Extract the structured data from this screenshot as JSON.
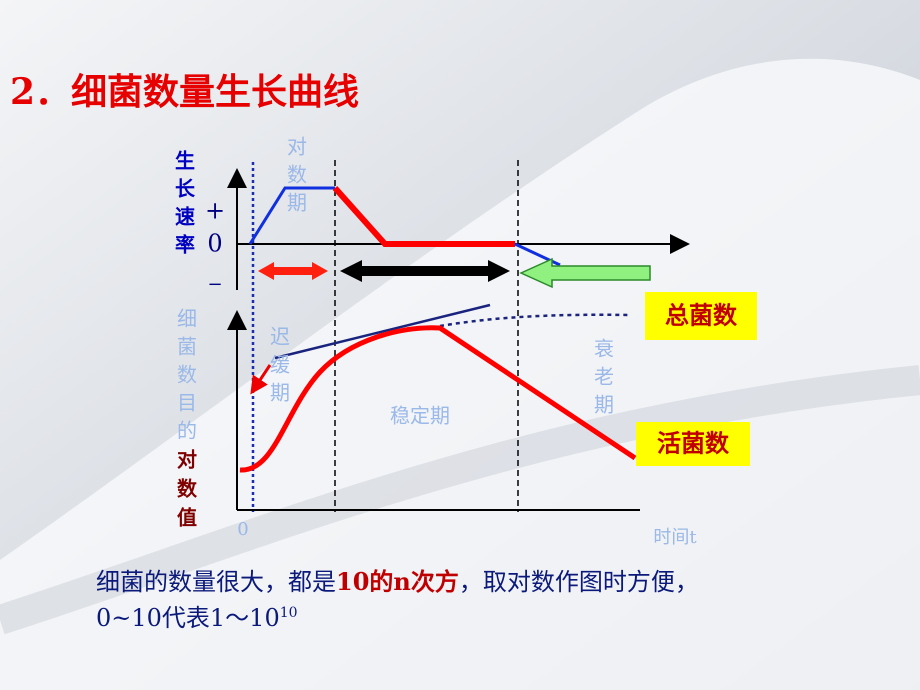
{
  "header": {
    "title": "2．细菌数量生长曲线"
  },
  "diagram": {
    "upper_axis_label": [
      "生",
      "长",
      "速",
      "率"
    ],
    "signs": [
      "+",
      "0",
      "−"
    ],
    "phase_labels": {
      "log": [
        "对",
        "数",
        "期"
      ],
      "lag": [
        "迟",
        "缓",
        "期"
      ],
      "stationary": "稳定期",
      "decline": [
        "衰",
        "老",
        "期"
      ]
    },
    "lower_axis_label_faint": [
      "细",
      "菌",
      "数",
      "目",
      "的"
    ],
    "lower_axis_label": [
      "对",
      "数",
      "值"
    ],
    "origin": "0",
    "x_axis_label": "时间t",
    "legend": {
      "total": "总菌数",
      "living": "活菌数"
    }
  },
  "note": {
    "line1": [
      "细菌的数量很大，都是",
      "10的n次方",
      "，取对数作图时方便，"
    ],
    "line2": [
      "0~10代表1～10",
      "10"
    ]
  }
}
